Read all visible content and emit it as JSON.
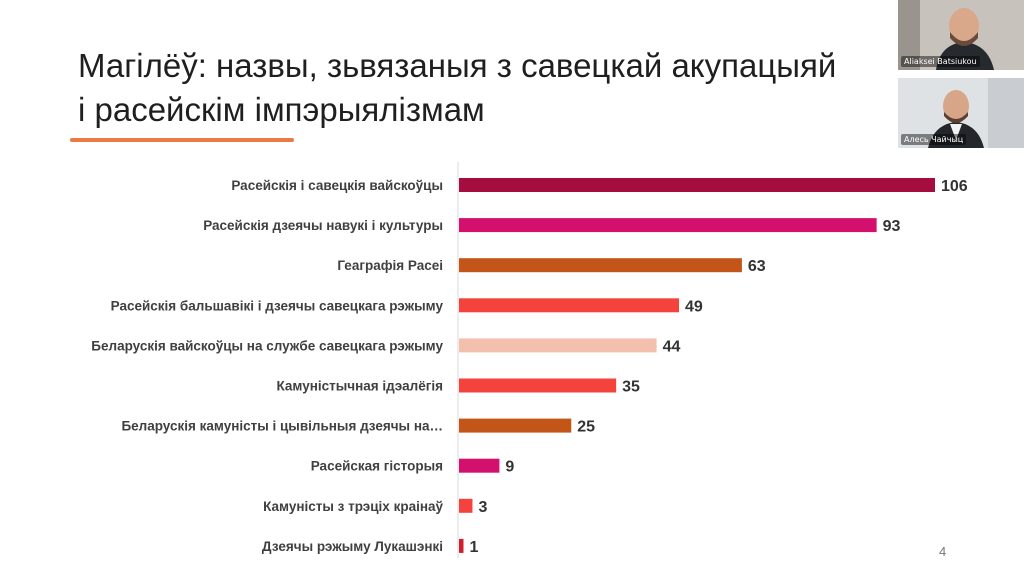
{
  "slide": {
    "title_line1": "Магілёў: назвы, зьвязаныя з савецкай акупацыяй",
    "title_line2": "і расейскім імпэрыялізмам",
    "page_number": "4",
    "underline_color": "#ea7a45"
  },
  "participants": [
    {
      "name": "Aliaksei Batsiukou"
    },
    {
      "name": "Алесь Чайчыц"
    }
  ],
  "chart_data": {
    "type": "bar",
    "orientation": "horizontal",
    "categories": [
      "Расейскія і савецкія вайскоўцы",
      "Расейскія дзеячы навукі і культуры",
      "Геаграфія Расеі",
      "Расейскія бальшавікі і дзеячы савецкага рэжыму",
      "Беларускія вайскоўцы на службе савецкага рэжыму",
      "Камуністычная ідэалёгія",
      "Беларускія камуністы і цывільныя дзеячы на…",
      "Расейская гісторыя",
      "Камуністы з трэціх краінаў",
      "Дзеячы рэжыму Лукашэнкі"
    ],
    "values": [
      106,
      93,
      63,
      49,
      44,
      35,
      25,
      9,
      3,
      1
    ],
    "colors": [
      "#a50d3f",
      "#d4106e",
      "#c45518",
      "#f4433c",
      "#f2c0ad",
      "#f4433c",
      "#c45518",
      "#d4106e",
      "#f4433c",
      "#d11f2c"
    ],
    "data_labels": [
      "106",
      "93",
      "63",
      "49",
      "44",
      "35",
      "25",
      "9",
      "3",
      "1"
    ],
    "xlim": [
      0,
      106
    ],
    "grid": false,
    "legend": "none"
  }
}
